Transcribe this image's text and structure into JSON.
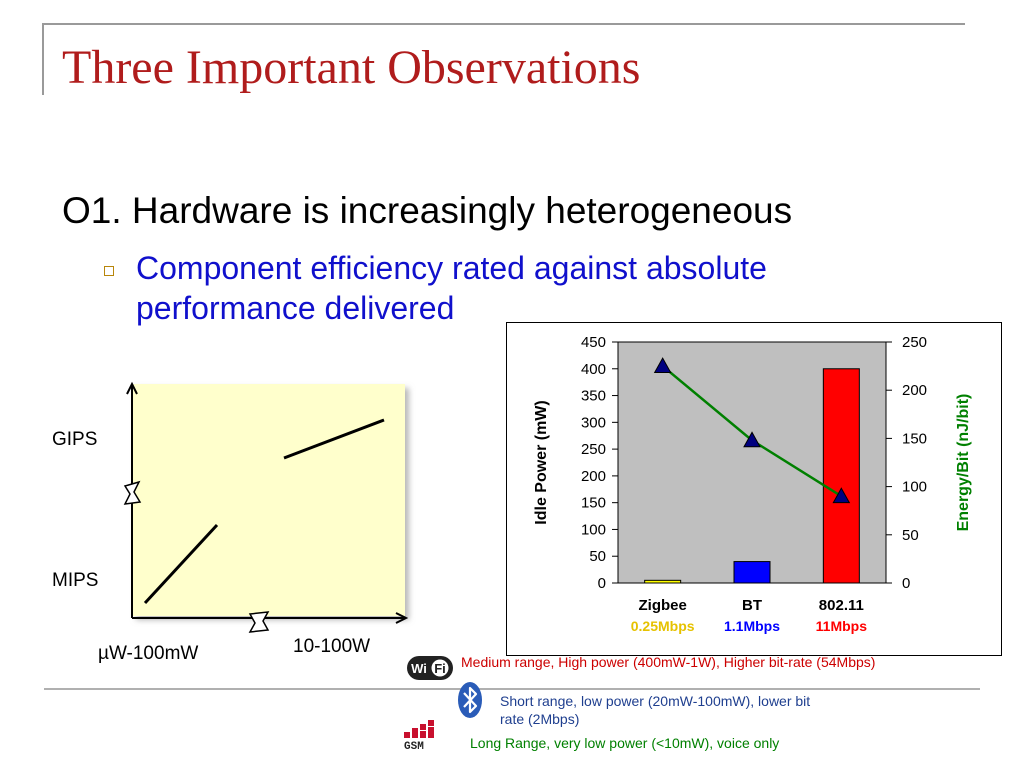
{
  "slide": {
    "title": "Three Important Observations",
    "observation": "O1. Hardware is increasingly heterogeneous",
    "bullet_line1": "Component efficiency rated against absolute",
    "bullet_line2": "performance delivered"
  },
  "sketch": {
    "y_top_label": "GIPS",
    "y_bottom_label": "MIPS",
    "x_left_label": "µW-100mW",
    "x_right_label": "10-100W"
  },
  "chart_data": {
    "type": "bar",
    "categories": [
      "Zigbee",
      "BT",
      "802.11"
    ],
    "category_rates": [
      "0.25Mbps",
      "1.1Mbps",
      "11Mbps"
    ],
    "ylabel": "Idle Power (mW)",
    "y2label": "Energy/Bit (nJ/bit)",
    "ylim": [
      0,
      450
    ],
    "y2lim": [
      0,
      250
    ],
    "yticks": [
      0,
      50,
      100,
      150,
      200,
      250,
      300,
      350,
      400,
      450
    ],
    "y2ticks": [
      0,
      50,
      100,
      150,
      200,
      250
    ],
    "series": [
      {
        "type": "bar",
        "axis": "left",
        "values": [
          5,
          40,
          400
        ],
        "colors": [
          "#ffff00",
          "#0000ff",
          "#ff0000"
        ]
      },
      {
        "type": "line",
        "axis": "right",
        "values": [
          225,
          148,
          90
        ],
        "color": "#008000",
        "marker_color": "#000080"
      }
    ],
    "rate_colors": [
      "#e6c200",
      "#0000ff",
      "#ff0000"
    ],
    "plot_background": "#bfbfbf"
  },
  "legend": {
    "wifi_text": "Medium range, High power (400mW-1W), Higher bit-rate (54Mbps)",
    "bt_text_line1": "Short range,  low power (20mW-100mW), lower bit",
    "bt_text_line2": "rate (2Mbps)",
    "gsm_text": "Long Range, very low power (<10mW), voice only",
    "wifi_logo": "Wi Fi",
    "gsm_logo": "GSM",
    "wifi_color": "#cc0000",
    "bt_color": "#1f3f8f",
    "gsm_color": "#008000"
  }
}
